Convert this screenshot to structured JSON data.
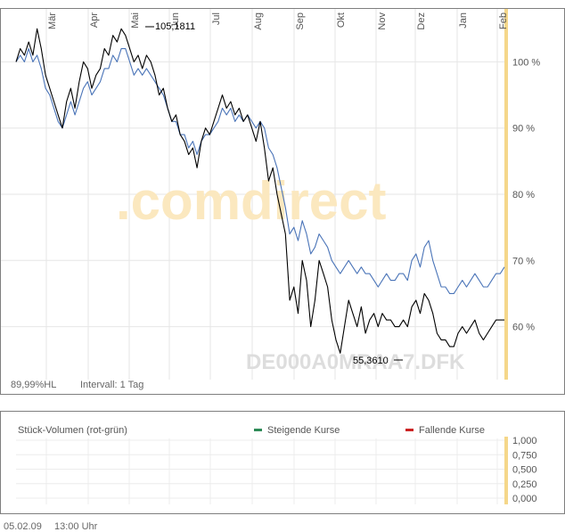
{
  "chart_data": [
    {
      "type": "line",
      "months": [
        "Mär",
        "Apr",
        "Mai",
        "Jun",
        "Jul",
        "Aug",
        "Sep",
        "Okt",
        "Nov",
        "Dez",
        "Jan",
        "Feb"
      ],
      "y_ticks": [
        "100 %",
        "90 %",
        "80 %",
        "70 %",
        "60 %"
      ],
      "ylim": [
        52,
        108
      ],
      "watermark": ".comdirect",
      "isin_label": "DE000A0MRAA7.DFK",
      "high_label": "105,1811",
      "low_label": "55,3610",
      "footer_left": "89,99%HL",
      "footer_interval": "Intervall: 1 Tag",
      "colors": {
        "primary": "#000000",
        "compare": "#4a74b8",
        "highlight": "#f5d78a",
        "grid": "#e6e6e6"
      },
      "series": [
        {
          "x": [
            0,
            3,
            6,
            9,
            12,
            15,
            18,
            21,
            24,
            27,
            30,
            33,
            36,
            39,
            42,
            45,
            48,
            51,
            54,
            57,
            60,
            63,
            66,
            69,
            72,
            75,
            78,
            81,
            84,
            87,
            90,
            93,
            96,
            99,
            102,
            105,
            108,
            111,
            114,
            117,
            120,
            123,
            126,
            129,
            132,
            135,
            138,
            141,
            144,
            147,
            150,
            153,
            156,
            159,
            162,
            165,
            168,
            171,
            174,
            177,
            180,
            183,
            186,
            189,
            192,
            195,
            198,
            201,
            204,
            207,
            210,
            213,
            216,
            219,
            222,
            225,
            228,
            231,
            234,
            237,
            240,
            243,
            246,
            249,
            252,
            255,
            258,
            261,
            264,
            267,
            270,
            273,
            276,
            279,
            282,
            285,
            288,
            291,
            294,
            297,
            300,
            303,
            306,
            309,
            312,
            315,
            318,
            321,
            324,
            327,
            330,
            333,
            336,
            339,
            342,
            345,
            348
          ],
          "values": [
            100,
            102,
            101,
            103,
            101,
            105,
            102,
            98,
            96,
            94,
            92,
            90,
            94,
            96,
            93,
            97,
            100,
            99,
            96,
            98,
            99,
            102,
            101,
            104,
            103,
            105,
            104,
            102,
            100,
            101,
            99,
            101,
            100,
            98,
            95,
            96,
            93,
            91,
            92,
            89,
            88,
            86,
            87,
            84,
            88,
            90,
            89,
            91,
            93,
            95,
            93,
            94,
            92,
            93,
            91,
            92,
            90,
            88,
            91,
            87,
            82,
            84,
            80,
            77,
            74,
            64,
            66,
            62,
            70,
            67,
            60,
            64,
            70,
            68,
            66,
            61,
            58,
            56,
            60,
            64,
            62,
            60,
            63,
            59,
            61,
            62,
            60,
            62,
            61,
            61,
            60,
            60,
            61,
            60,
            63,
            64,
            62,
            65,
            64,
            62,
            59,
            58,
            58,
            57,
            57,
            59,
            60,
            59,
            60,
            61,
            59,
            58,
            59,
            60,
            61,
            61,
            61
          ],
          "name": ""
        },
        {
          "x": [
            0,
            3,
            6,
            9,
            12,
            15,
            18,
            21,
            24,
            27,
            30,
            33,
            36,
            39,
            42,
            45,
            48,
            51,
            54,
            57,
            60,
            63,
            66,
            69,
            72,
            75,
            78,
            81,
            84,
            87,
            90,
            93,
            96,
            99,
            102,
            105,
            108,
            111,
            114,
            117,
            120,
            123,
            126,
            129,
            132,
            135,
            138,
            141,
            144,
            147,
            150,
            153,
            156,
            159,
            162,
            165,
            168,
            171,
            174,
            177,
            180,
            183,
            186,
            189,
            192,
            195,
            198,
            201,
            204,
            207,
            210,
            213,
            216,
            219,
            222,
            225,
            228,
            231,
            234,
            237,
            240,
            243,
            246,
            249,
            252,
            255,
            258,
            261,
            264,
            267,
            270,
            273,
            276,
            279,
            282,
            285,
            288,
            291,
            294,
            297,
            300,
            303,
            306,
            309,
            312,
            315,
            318,
            321,
            324,
            327,
            330,
            333,
            336,
            339,
            342,
            345,
            348
          ],
          "values": [
            100,
            101,
            100,
            102,
            100,
            101,
            99,
            96,
            95,
            93,
            91,
            90,
            92,
            94,
            92,
            94,
            96,
            97,
            95,
            96,
            97,
            99,
            99,
            101,
            100,
            102,
            102,
            100,
            98,
            99,
            98,
            99,
            98,
            97,
            96,
            95,
            93,
            91,
            91,
            89,
            89,
            87,
            88,
            86,
            88,
            89,
            89,
            90,
            91,
            93,
            92,
            93,
            91,
            92,
            91,
            92,
            91,
            90,
            91,
            90,
            87,
            86,
            84,
            81,
            78,
            74,
            75,
            73,
            76,
            74,
            71,
            72,
            74,
            73,
            72,
            70,
            69,
            68,
            69,
            70,
            69,
            68,
            69,
            68,
            68,
            67,
            66,
            67,
            68,
            67,
            67,
            68,
            68,
            67,
            70,
            71,
            69,
            72,
            73,
            70,
            68,
            66,
            66,
            65,
            65,
            66,
            67,
            66,
            67,
            68,
            67,
            66,
            66,
            67,
            68,
            68,
            69
          ],
          "name": ""
        }
      ]
    },
    {
      "type": "bar",
      "title": "Stück-Volumen (rot-grün)",
      "legend": [
        {
          "label": "Steigende Kurse",
          "color": "#2e8b57"
        },
        {
          "label": "Fallende Kurse",
          "color": "#cc2222"
        }
      ],
      "y_ticks": [
        "1,000",
        "0,750",
        "0,500",
        "0,250",
        "0,000"
      ],
      "ylim": [
        0,
        1
      ],
      "values": []
    }
  ],
  "footer": {
    "date": "05.02.09",
    "time": "13:00 Uhr"
  }
}
